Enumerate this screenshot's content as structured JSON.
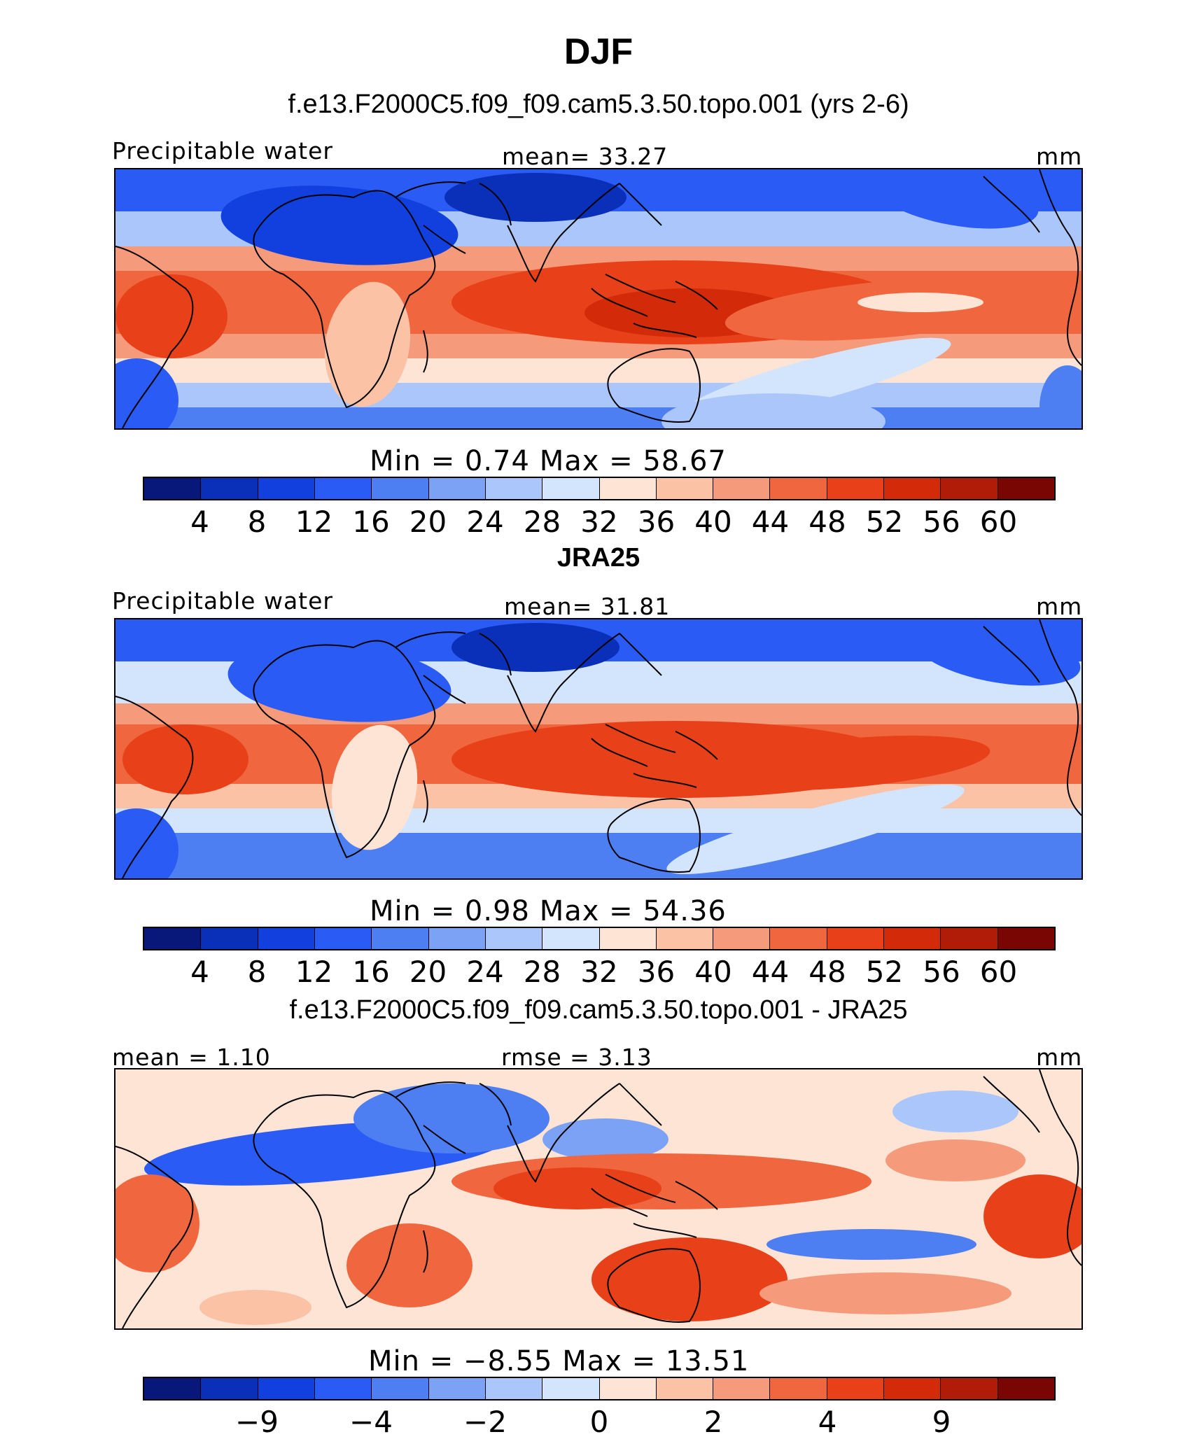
{
  "figure": {
    "title": "DJF"
  },
  "palette": [
    "#08187a",
    "#0a2fb8",
    "#1240de",
    "#2a5cf5",
    "#4d7ef2",
    "#7ca2f5",
    "#aac6fb",
    "#d3e4fd",
    "#fde4d4",
    "#fbc2a6",
    "#f59a7a",
    "#f0663f",
    "#e8411a",
    "#d32b0a",
    "#b01c08",
    "#7a0603"
  ],
  "panels": [
    {
      "title": "f.e13.F2000C5.f09_f09.cam5.3.50.topo.001 (yrs 2-6)",
      "left_label": "Precipitable water",
      "center_label": "mean=   33.27",
      "right_label": "mm",
      "minmax": "Min  =     0.74  Max  =    58.67",
      "ticks": [
        "4",
        "8",
        "12",
        "16",
        "20",
        "24",
        "28",
        "32",
        "36",
        "40",
        "44",
        "48",
        "52",
        "56",
        "60"
      ]
    },
    {
      "title": "JRA25",
      "left_label": "Precipitable water",
      "center_label": "mean=   31.81",
      "right_label": "mm",
      "minmax": "Min  =     0.98  Max  =    54.36",
      "ticks": [
        "4",
        "8",
        "12",
        "16",
        "20",
        "24",
        "28",
        "32",
        "36",
        "40",
        "44",
        "48",
        "52",
        "56",
        "60"
      ]
    },
    {
      "title": "f.e13.F2000C5.f09_f09.cam5.3.50.topo.001 - JRA25",
      "left_label": "mean  =     1.10",
      "center_label": "rmse  =     3.13",
      "right_label": "mm",
      "minmax": "Min  =   −8.55  Max  =    13.51",
      "ticks": [
        "−9",
        "−4",
        "−2",
        "0",
        "2",
        "4",
        "9"
      ]
    }
  ]
}
